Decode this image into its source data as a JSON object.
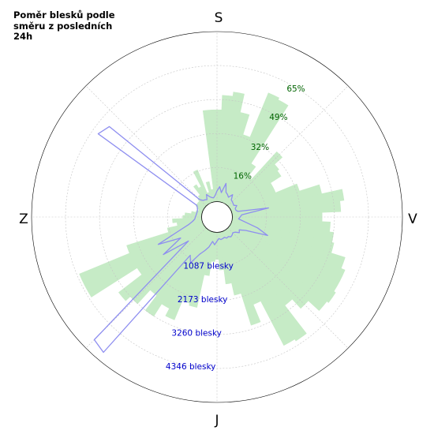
{
  "chart_data": {
    "type": "polar-bar-line",
    "title": "Poměr blesků podle směru z posledních 24h",
    "compass_labels": {
      "north": "S",
      "east": "V",
      "south": "J",
      "west": "Z"
    },
    "percent_ticks": [
      {
        "value": 16,
        "label": "16%"
      },
      {
        "value": 32,
        "label": "32%"
      },
      {
        "value": 49,
        "label": "49%"
      },
      {
        "value": 65,
        "label": "65%"
      }
    ],
    "count_ticks": [
      {
        "value": 1087,
        "label": "1087 blesky"
      },
      {
        "value": 2173,
        "label": "2173 blesky"
      },
      {
        "value": 3260,
        "label": "3260 blesky"
      },
      {
        "value": 4346,
        "label": "4346 blesky"
      }
    ],
    "percent_max": 81.5,
    "count_max": 5430,
    "bin_width_deg": 5,
    "bar_series": {
      "color": "#c6ebc6",
      "bins": [
        {
          "deg": 0,
          "value": 44
        },
        {
          "deg": 5,
          "value": 51
        },
        {
          "deg": 10,
          "value": 53
        },
        {
          "deg": 15,
          "value": 44
        },
        {
          "deg": 20,
          "value": 34
        },
        {
          "deg": 25,
          "value": 57
        },
        {
          "deg": 30,
          "value": 56
        },
        {
          "deg": 35,
          "value": 23
        },
        {
          "deg": 40,
          "value": 17
        },
        {
          "deg": 45,
          "value": 35
        },
        {
          "deg": 50,
          "value": 30
        },
        {
          "deg": 55,
          "value": 29
        },
        {
          "deg": 60,
          "value": 23
        },
        {
          "deg": 65,
          "value": 23
        },
        {
          "deg": 70,
          "value": 34
        },
        {
          "deg": 75,
          "value": 44
        },
        {
          "deg": 80,
          "value": 54
        },
        {
          "deg": 85,
          "value": 52
        },
        {
          "deg": 90,
          "value": 43
        },
        {
          "deg": 95,
          "value": 47
        },
        {
          "deg": 100,
          "value": 49
        },
        {
          "deg": 105,
          "value": 50
        },
        {
          "deg": 110,
          "value": 57
        },
        {
          "deg": 115,
          "value": 59
        },
        {
          "deg": 120,
          "value": 59
        },
        {
          "deg": 125,
          "value": 60
        },
        {
          "deg": 130,
          "value": 59
        },
        {
          "deg": 135,
          "value": 52
        },
        {
          "deg": 140,
          "value": 46
        },
        {
          "deg": 145,
          "value": 63
        },
        {
          "deg": 150,
          "value": 62
        },
        {
          "deg": 155,
          "value": 38
        },
        {
          "deg": 160,
          "value": 47
        },
        {
          "deg": 165,
          "value": 31
        },
        {
          "deg": 170,
          "value": 25
        },
        {
          "deg": 175,
          "value": 18
        },
        {
          "deg": 180,
          "value": 13
        },
        {
          "deg": 185,
          "value": 14
        },
        {
          "deg": 190,
          "value": 21
        },
        {
          "deg": 195,
          "value": 37
        },
        {
          "deg": 200,
          "value": 36
        },
        {
          "deg": 205,
          "value": 46
        },
        {
          "deg": 210,
          "value": 42
        },
        {
          "deg": 215,
          "value": 49
        },
        {
          "deg": 220,
          "value": 40
        },
        {
          "deg": 225,
          "value": 49
        },
        {
          "deg": 230,
          "value": 52
        },
        {
          "deg": 235,
          "value": 38
        },
        {
          "deg": 240,
          "value": 64
        },
        {
          "deg": 245,
          "value": 64
        },
        {
          "deg": 250,
          "value": 38
        },
        {
          "deg": 255,
          "value": 17
        },
        {
          "deg": 260,
          "value": 12
        },
        {
          "deg": 265,
          "value": 14
        },
        {
          "deg": 270,
          "value": 9
        },
        {
          "deg": 275,
          "value": 8
        },
        {
          "deg": 280,
          "value": 5
        },
        {
          "deg": 285,
          "value": 3
        },
        {
          "deg": 290,
          "value": 2
        },
        {
          "deg": 295,
          "value": 3
        },
        {
          "deg": 300,
          "value": 4
        },
        {
          "deg": 305,
          "value": 4
        },
        {
          "deg": 310,
          "value": 4
        },
        {
          "deg": 315,
          "value": 5
        },
        {
          "deg": 320,
          "value": 6
        },
        {
          "deg": 325,
          "value": 11
        },
        {
          "deg": 330,
          "value": 9
        },
        {
          "deg": 335,
          "value": 17
        },
        {
          "deg": 340,
          "value": 5
        },
        {
          "deg": 345,
          "value": 10
        },
        {
          "deg": 350,
          "value": 6
        },
        {
          "deg": 355,
          "value": 44
        }
      ]
    },
    "line_series": {
      "color": "#8e8ef0",
      "points": [
        {
          "deg": 0,
          "value": 340
        },
        {
          "deg": 5,
          "value": 480
        },
        {
          "deg": 10,
          "value": 300
        },
        {
          "deg": 15,
          "value": 620
        },
        {
          "deg": 20,
          "value": 350
        },
        {
          "deg": 25,
          "value": 300
        },
        {
          "deg": 30,
          "value": 240
        },
        {
          "deg": 35,
          "value": 380
        },
        {
          "deg": 40,
          "value": 220
        },
        {
          "deg": 45,
          "value": 200
        },
        {
          "deg": 50,
          "value": 180
        },
        {
          "deg": 55,
          "value": 160
        },
        {
          "deg": 60,
          "value": 240
        },
        {
          "deg": 65,
          "value": 150
        },
        {
          "deg": 70,
          "value": 150
        },
        {
          "deg": 75,
          "value": 200
        },
        {
          "deg": 80,
          "value": 1180
        },
        {
          "deg": 85,
          "value": 300
        },
        {
          "deg": 90,
          "value": 250
        },
        {
          "deg": 95,
          "value": 200
        },
        {
          "deg": 100,
          "value": 420
        },
        {
          "deg": 105,
          "value": 850
        },
        {
          "deg": 110,
          "value": 1230
        },
        {
          "deg": 115,
          "value": 520
        },
        {
          "deg": 120,
          "value": 330
        },
        {
          "deg": 125,
          "value": 380
        },
        {
          "deg": 130,
          "value": 260
        },
        {
          "deg": 135,
          "value": 220
        },
        {
          "deg": 140,
          "value": 260
        },
        {
          "deg": 145,
          "value": 280
        },
        {
          "deg": 150,
          "value": 230
        },
        {
          "deg": 155,
          "value": 250
        },
        {
          "deg": 160,
          "value": 200
        },
        {
          "deg": 165,
          "value": 220
        },
        {
          "deg": 170,
          "value": 240
        },
        {
          "deg": 175,
          "value": 200
        },
        {
          "deg": 180,
          "value": 280
        },
        {
          "deg": 185,
          "value": 400
        },
        {
          "deg": 190,
          "value": 300
        },
        {
          "deg": 195,
          "value": 500
        },
        {
          "deg": 200,
          "value": 650
        },
        {
          "deg": 205,
          "value": 820
        },
        {
          "deg": 210,
          "value": 1200
        },
        {
          "deg": 215,
          "value": 1000
        },
        {
          "deg": 220,
          "value": 5150
        },
        {
          "deg": 225,
          "value": 5050
        },
        {
          "deg": 230,
          "value": 700
        },
        {
          "deg": 235,
          "value": 1600
        },
        {
          "deg": 240,
          "value": 850
        },
        {
          "deg": 245,
          "value": 1580
        },
        {
          "deg": 250,
          "value": 800
        },
        {
          "deg": 255,
          "value": 450
        },
        {
          "deg": 260,
          "value": 300
        },
        {
          "deg": 265,
          "value": 220
        },
        {
          "deg": 270,
          "value": 200
        },
        {
          "deg": 275,
          "value": 180
        },
        {
          "deg": 280,
          "value": 170
        },
        {
          "deg": 285,
          "value": 160
        },
        {
          "deg": 290,
          "value": 170
        },
        {
          "deg": 295,
          "value": 200
        },
        {
          "deg": 300,
          "value": 250
        },
        {
          "deg": 305,
          "value": 4140
        },
        {
          "deg": 310,
          "value": 4000
        },
        {
          "deg": 315,
          "value": 300
        },
        {
          "deg": 320,
          "value": 200
        },
        {
          "deg": 325,
          "value": 180
        },
        {
          "deg": 330,
          "value": 150
        },
        {
          "deg": 335,
          "value": 300
        },
        {
          "deg": 340,
          "value": 200
        },
        {
          "deg": 345,
          "value": 150
        },
        {
          "deg": 350,
          "value": 130
        },
        {
          "deg": 355,
          "value": 200
        }
      ]
    },
    "percent_label_color": "#006400",
    "count_label_color": "#0000cc",
    "grid": true
  }
}
